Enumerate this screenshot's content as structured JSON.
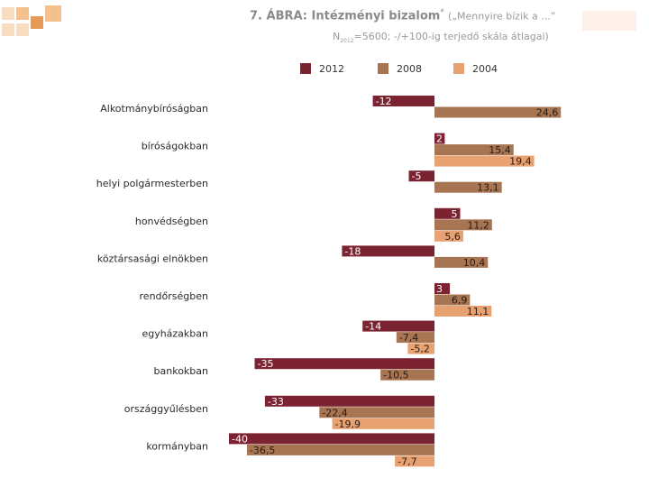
{
  "header": {
    "title": "7. ÁBRA: Intézményi bizalom",
    "title_star": "*",
    "title_quote": "(„Mennyire bízik a ...”",
    "subtitle_n": "N",
    "subtitle_n_sub": "2012",
    "subtitle_rest": "=5600; -/+100-ig terjedő skála átlagai)"
  },
  "colors": {
    "s2012": "#7c2332",
    "s2008": "#a87553",
    "s2004": "#e8a272",
    "label_on_dark": "#ffffff",
    "label_on_light": "#2a1a10",
    "logo_a": "#f4c08c",
    "logo_b": "#f7dcc0",
    "logo_c": "#e59a5a"
  },
  "chart_data": {
    "type": "bar",
    "orientation": "horizontal",
    "categories": [
      "Alkotmánybíróságban",
      "bíróságokban",
      "helyi polgármesterben",
      "honvédségben",
      "köztársasági elnökben",
      "rendőrségben",
      "egyházakban",
      "bankokban",
      "országgyűlésben",
      "kormányban"
    ],
    "series": [
      {
        "name": "2012",
        "color_key": "s2012",
        "values": [
          -12,
          2,
          -5,
          5,
          -18,
          3,
          -14,
          -35,
          -33,
          -40
        ],
        "labels": [
          "-12",
          "2",
          "-5",
          "5",
          "-18",
          "3",
          "-14",
          "-35",
          "-33",
          "-40"
        ]
      },
      {
        "name": "2008",
        "color_key": "s2008",
        "values": [
          24.6,
          15.4,
          13.1,
          11.2,
          10.4,
          6.9,
          -7.4,
          -10.5,
          -22.4,
          -36.5
        ],
        "labels": [
          "24,6",
          "15,4",
          "13,1",
          "11,2",
          "10,4",
          "6,9",
          "-7,4",
          "-10,5",
          "-22,4",
          "-36,5"
        ]
      },
      {
        "name": "2004",
        "color_key": "s2004",
        "values": [
          null,
          19.4,
          null,
          5.6,
          null,
          11.1,
          -5.2,
          null,
          -19.9,
          -7.7
        ],
        "labels": [
          null,
          "19,4",
          null,
          "5,6",
          null,
          "11,1",
          "-5,2",
          null,
          "-19,9",
          "-7,7"
        ]
      }
    ],
    "xlim": [
      -40,
      25
    ],
    "grid": false,
    "legend": "top"
  }
}
